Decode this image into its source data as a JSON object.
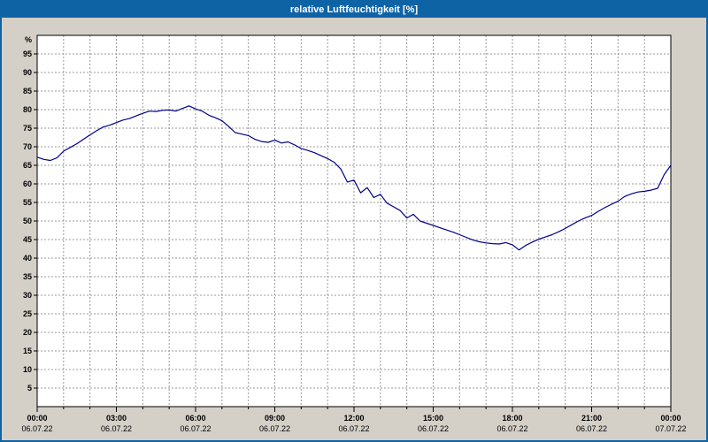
{
  "window": {
    "title": "relative Luftfeuchtigkeit [%]"
  },
  "colors": {
    "frame_blue": "#0e63a5",
    "title_text": "#ffffff",
    "background": "#d4d0c8",
    "plot_bg": "#ffffff",
    "grid": "#999999",
    "axis": "#000000",
    "line": "#00008b",
    "label_text": "#000000"
  },
  "chart_data": {
    "type": "line",
    "title": "relative Luftfeuchtigkeit [%]",
    "ylabel": "%",
    "ylim": [
      0,
      100
    ],
    "ytick_step": 5,
    "ytick_labels": [
      5,
      10,
      15,
      20,
      25,
      30,
      35,
      40,
      45,
      50,
      55,
      60,
      65,
      70,
      75,
      80,
      85,
      90,
      95
    ],
    "xlim_hours": [
      0,
      24
    ],
    "x_minor_step_hours": 1,
    "grid": true,
    "legend": "none",
    "x_axis_labels": [
      {
        "hour": 0,
        "time": "00:00",
        "date": "06.07.22"
      },
      {
        "hour": 3,
        "time": "03:00",
        "date": "06.07.22"
      },
      {
        "hour": 6,
        "time": "06:00",
        "date": "06.07.22"
      },
      {
        "hour": 9,
        "time": "09:00",
        "date": "06.07.22"
      },
      {
        "hour": 12,
        "time": "12:00",
        "date": "06.07.22"
      },
      {
        "hour": 15,
        "time": "15:00",
        "date": "06.07.22"
      },
      {
        "hour": 18,
        "time": "18:00",
        "date": "06.07.22"
      },
      {
        "hour": 21,
        "time": "21:00",
        "date": "06.07.22"
      },
      {
        "hour": 24,
        "time": "00:00",
        "date": "07.07.22"
      }
    ],
    "series": [
      [
        0.0,
        67.2
      ],
      [
        0.25,
        66.6
      ],
      [
        0.5,
        66.3
      ],
      [
        0.75,
        67.0
      ],
      [
        1.0,
        68.8
      ],
      [
        1.25,
        69.8
      ],
      [
        1.5,
        70.8
      ],
      [
        1.75,
        72.0
      ],
      [
        2.0,
        73.2
      ],
      [
        2.25,
        74.3
      ],
      [
        2.5,
        75.3
      ],
      [
        2.75,
        75.8
      ],
      [
        3.0,
        76.5
      ],
      [
        3.25,
        77.2
      ],
      [
        3.5,
        77.6
      ],
      [
        3.75,
        78.3
      ],
      [
        4.0,
        79.0
      ],
      [
        4.25,
        79.6
      ],
      [
        4.5,
        79.5
      ],
      [
        4.75,
        79.8
      ],
      [
        5.0,
        79.9
      ],
      [
        5.25,
        79.6
      ],
      [
        5.5,
        80.3
      ],
      [
        5.75,
        81.0
      ],
      [
        6.0,
        80.2
      ],
      [
        6.25,
        79.6
      ],
      [
        6.5,
        78.5
      ],
      [
        6.75,
        77.8
      ],
      [
        7.0,
        77.0
      ],
      [
        7.25,
        75.5
      ],
      [
        7.5,
        73.8
      ],
      [
        7.75,
        73.4
      ],
      [
        8.0,
        73.0
      ],
      [
        8.25,
        72.0
      ],
      [
        8.5,
        71.4
      ],
      [
        8.75,
        71.2
      ],
      [
        9.0,
        71.8
      ],
      [
        9.25,
        71.0
      ],
      [
        9.5,
        71.3
      ],
      [
        9.75,
        70.5
      ],
      [
        10.0,
        69.5
      ],
      [
        10.25,
        69.0
      ],
      [
        10.5,
        68.4
      ],
      [
        10.75,
        67.6
      ],
      [
        11.0,
        66.8
      ],
      [
        11.25,
        65.8
      ],
      [
        11.5,
        64.0
      ],
      [
        11.75,
        60.5
      ],
      [
        12.0,
        61.0
      ],
      [
        12.25,
        57.6
      ],
      [
        12.5,
        59.0
      ],
      [
        12.75,
        56.3
      ],
      [
        13.0,
        57.2
      ],
      [
        13.25,
        54.8
      ],
      [
        13.5,
        53.8
      ],
      [
        13.75,
        52.8
      ],
      [
        14.0,
        50.8
      ],
      [
        14.25,
        51.8
      ],
      [
        14.5,
        50.0
      ],
      [
        14.75,
        49.4
      ],
      [
        15.0,
        48.8
      ],
      [
        15.25,
        48.2
      ],
      [
        15.5,
        47.6
      ],
      [
        15.75,
        47.0
      ],
      [
        16.0,
        46.3
      ],
      [
        16.25,
        45.6
      ],
      [
        16.5,
        44.9
      ],
      [
        16.75,
        44.4
      ],
      [
        17.0,
        44.1
      ],
      [
        17.25,
        43.9
      ],
      [
        17.5,
        43.8
      ],
      [
        17.75,
        44.2
      ],
      [
        18.0,
        43.6
      ],
      [
        18.25,
        42.2
      ],
      [
        18.5,
        43.4
      ],
      [
        18.75,
        44.3
      ],
      [
        19.0,
        45.1
      ],
      [
        19.25,
        45.7
      ],
      [
        19.5,
        46.3
      ],
      [
        19.75,
        47.1
      ],
      [
        20.0,
        48.0
      ],
      [
        20.25,
        49.0
      ],
      [
        20.5,
        50.0
      ],
      [
        20.75,
        50.8
      ],
      [
        21.0,
        51.5
      ],
      [
        21.25,
        52.6
      ],
      [
        21.5,
        53.6
      ],
      [
        21.75,
        54.5
      ],
      [
        22.0,
        55.3
      ],
      [
        22.25,
        56.6
      ],
      [
        22.5,
        57.3
      ],
      [
        22.75,
        57.8
      ],
      [
        23.0,
        58.0
      ],
      [
        23.25,
        58.3
      ],
      [
        23.5,
        58.8
      ],
      [
        23.75,
        62.5
      ],
      [
        24.0,
        65.0
      ]
    ]
  }
}
